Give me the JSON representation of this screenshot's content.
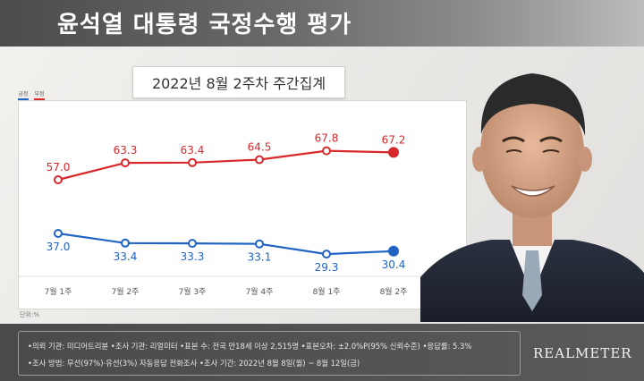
{
  "header": {
    "title": "윤석열 대통령 국정수행 평가"
  },
  "chart_data": {
    "type": "line",
    "title": "",
    "subtitle": "2022년 8월 2주차 주간집계",
    "categories": [
      "7월 1주",
      "7월 2주",
      "7월 3주",
      "7월 4주",
      "8월 1주",
      "8월 2주"
    ],
    "series": [
      {
        "name": "긍정",
        "color": "#1f63c4",
        "values": [
          37.0,
          33.4,
          33.3,
          33.1,
          29.3,
          30.4
        ],
        "labels": [
          "37.0",
          "33.4",
          "33.3",
          "33.1",
          "29.3",
          "30.4"
        ]
      },
      {
        "name": "부정",
        "color": "#d8282b",
        "values": [
          57.0,
          63.3,
          63.4,
          64.5,
          67.8,
          67.2
        ],
        "labels": [
          "57.0",
          "63.3",
          "63.4",
          "64.5",
          "67.8",
          "67.2"
        ]
      }
    ],
    "ylim": [
      20,
      80
    ],
    "grid": false,
    "legend_position": "top-left",
    "unit_label": "단위:%"
  },
  "footer": {
    "line1": "•의뢰 기관: 미디어트리뷴 •조사 기관: 리얼미터 •표본 수: 전국 만18세 이상 2,515명 •표본오차: ±2.0%P(95% 신뢰수준) •응답률: 5.3%",
    "line2": "•조사 방법: 무선(97%)·유선(3%) 자동응답 전화조사 •조사 기간: 2022년 8월 8일(월) ~ 8월 12일(금)",
    "brand": "REALMETER"
  }
}
